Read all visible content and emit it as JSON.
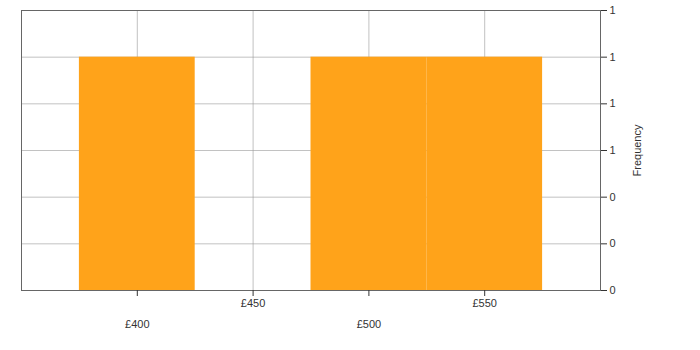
{
  "chart_data": {
    "type": "histogram",
    "bins": [
      375,
      425,
      475,
      525,
      575
    ],
    "values": [
      1,
      0,
      1,
      1
    ],
    "color": "#ffa31a",
    "xlim": [
      350,
      600
    ],
    "xticks": [
      {
        "value": 400,
        "label": "£400"
      },
      {
        "value": 450,
        "label": "£450"
      },
      {
        "value": 500,
        "label": "£500"
      },
      {
        "value": 550,
        "label": "£550"
      }
    ],
    "ylim": [
      0,
      1.2
    ],
    "yticks": [
      0,
      {
        "value": 0.2,
        "label": "0"
      },
      {
        "value": 0.4,
        "label": "0"
      },
      {
        "value": 0.6,
        "label": "1"
      },
      {
        "value": 0.8,
        "label": "1"
      },
      1,
      {
        "value": 1.2,
        "label": "1"
      }
    ],
    "y_label": "Frequency",
    "grid": true
  }
}
